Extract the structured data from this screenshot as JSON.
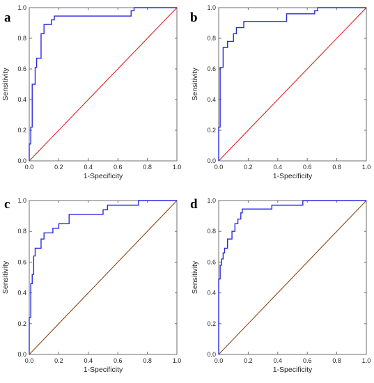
{
  "figure": {
    "colors": {
      "roc": "#2a2ae0",
      "diagonal_red": "#e02020",
      "diagonal_brown": "#8b4513",
      "frame": "#6e6e6e"
    }
  },
  "chart_data": [
    {
      "type": "line",
      "panel": "a",
      "xlabel": "1-Specificity",
      "ylabel": "Sensitivity",
      "xlim": [
        0,
        1
      ],
      "ylim": [
        0,
        1
      ],
      "xticks": [
        "0.0",
        "0.2",
        "0.4",
        "0.6",
        "0.8",
        "1.0"
      ],
      "yticks": [
        "0.0",
        "0.2",
        "0.4",
        "0.6",
        "0.8",
        "1.0"
      ],
      "grid": false,
      "series": [
        {
          "role": "roc",
          "color": "#2a2ae0",
          "x": [
            0,
            0,
            0.01,
            0.01,
            0.02,
            0.02,
            0.04,
            0.04,
            0.05,
            0.05,
            0.08,
            0.08,
            0.1,
            0.1,
            0.15,
            0.15,
            0.17,
            0.17,
            0.69,
            0.69,
            0.71,
            0.71,
            1.0
          ],
          "y": [
            0,
            0.11,
            0.11,
            0.22,
            0.22,
            0.5,
            0.5,
            0.61,
            0.61,
            0.67,
            0.67,
            0.83,
            0.83,
            0.89,
            0.89,
            0.92,
            0.92,
            0.945,
            0.945,
            0.98,
            0.98,
            1.0,
            1.0
          ]
        },
        {
          "role": "diagonal",
          "color": "#e02020",
          "x": [
            0,
            1
          ],
          "y": [
            0,
            1
          ]
        }
      ]
    },
    {
      "type": "line",
      "panel": "b",
      "xlabel": "1-Specificity",
      "ylabel": "Sensitivity",
      "xlim": [
        0,
        1
      ],
      "ylim": [
        0,
        1
      ],
      "xticks": [
        "0.0",
        "0.2",
        "0.4",
        "0.6",
        "0.8",
        "1.0"
      ],
      "yticks": [
        "0.0",
        "0.2",
        "0.4",
        "0.6",
        "0.8",
        "1.0"
      ],
      "grid": false,
      "series": [
        {
          "role": "roc",
          "color": "#2a2ae0",
          "x": [
            0,
            0,
            0.01,
            0.01,
            0.03,
            0.03,
            0.06,
            0.06,
            0.1,
            0.1,
            0.12,
            0.12,
            0.14,
            0.14,
            0.17,
            0.17,
            0.23,
            0.23,
            0.46,
            0.46,
            0.65,
            0.65,
            0.67,
            0.67,
            1.0
          ],
          "y": [
            0,
            0.22,
            0.22,
            0.61,
            0.61,
            0.74,
            0.74,
            0.78,
            0.78,
            0.83,
            0.83,
            0.87,
            0.87,
            0.87,
            0.87,
            0.91,
            0.91,
            0.91,
            0.91,
            0.96,
            0.96,
            0.98,
            0.98,
            1.0,
            1.0
          ]
        },
        {
          "role": "diagonal",
          "color": "#e02020",
          "x": [
            0,
            1
          ],
          "y": [
            0,
            1
          ]
        }
      ]
    },
    {
      "type": "line",
      "panel": "c",
      "xlabel": "1-Specificity",
      "ylabel": "Sensitivity",
      "xlim": [
        0,
        1
      ],
      "ylim": [
        0,
        1
      ],
      "xticks": [
        "0.0",
        "0.2",
        "0.4",
        "0.6",
        "0.8",
        "1.0"
      ],
      "yticks": [
        "0.0",
        "0.2",
        "0.4",
        "0.6",
        "0.8",
        "1.0"
      ],
      "grid": false,
      "series": [
        {
          "role": "roc",
          "color": "#2a2ae0",
          "x": [
            0,
            0,
            0.01,
            0.01,
            0.02,
            0.02,
            0.03,
            0.03,
            0.04,
            0.04,
            0.08,
            0.08,
            0.1,
            0.1,
            0.12,
            0.12,
            0.16,
            0.16,
            0.2,
            0.2,
            0.27,
            0.27,
            0.5,
            0.5,
            0.53,
            0.53,
            0.74,
            0.74,
            1.0
          ],
          "y": [
            0,
            0.24,
            0.24,
            0.46,
            0.46,
            0.52,
            0.52,
            0.64,
            0.64,
            0.69,
            0.69,
            0.75,
            0.75,
            0.79,
            0.79,
            0.79,
            0.79,
            0.82,
            0.82,
            0.85,
            0.85,
            0.91,
            0.91,
            0.94,
            0.94,
            0.97,
            0.97,
            1.0,
            1.0
          ]
        },
        {
          "role": "diagonal",
          "color": "#8b4513",
          "x": [
            0,
            1
          ],
          "y": [
            0,
            1
          ]
        }
      ]
    },
    {
      "type": "line",
      "panel": "d",
      "xlabel": "1-Specificity",
      "ylabel": "Sensitivity",
      "xlim": [
        0,
        1
      ],
      "ylim": [
        0,
        1
      ],
      "xticks": [
        "0.0",
        "0.2",
        "0.4",
        "0.6",
        "0.8",
        "1.0"
      ],
      "yticks": [
        "0.0",
        "0.2",
        "0.4",
        "0.6",
        "0.8",
        "1.0"
      ],
      "grid": false,
      "series": [
        {
          "role": "roc",
          "color": "#2a2ae0",
          "x": [
            0,
            0,
            0.01,
            0.01,
            0.02,
            0.02,
            0.03,
            0.03,
            0.04,
            0.04,
            0.06,
            0.06,
            0.09,
            0.09,
            0.11,
            0.11,
            0.13,
            0.13,
            0.15,
            0.15,
            0.16,
            0.16,
            0.36,
            0.36,
            0.57,
            0.57,
            1.0
          ],
          "y": [
            0,
            0.49,
            0.49,
            0.58,
            0.58,
            0.62,
            0.62,
            0.66,
            0.66,
            0.69,
            0.69,
            0.75,
            0.75,
            0.8,
            0.8,
            0.85,
            0.85,
            0.88,
            0.88,
            0.92,
            0.92,
            0.945,
            0.945,
            0.97,
            0.97,
            1.0,
            1.0
          ]
        },
        {
          "role": "diagonal",
          "color": "#8b4513",
          "x": [
            0,
            1
          ],
          "y": [
            0,
            1
          ]
        }
      ]
    }
  ]
}
